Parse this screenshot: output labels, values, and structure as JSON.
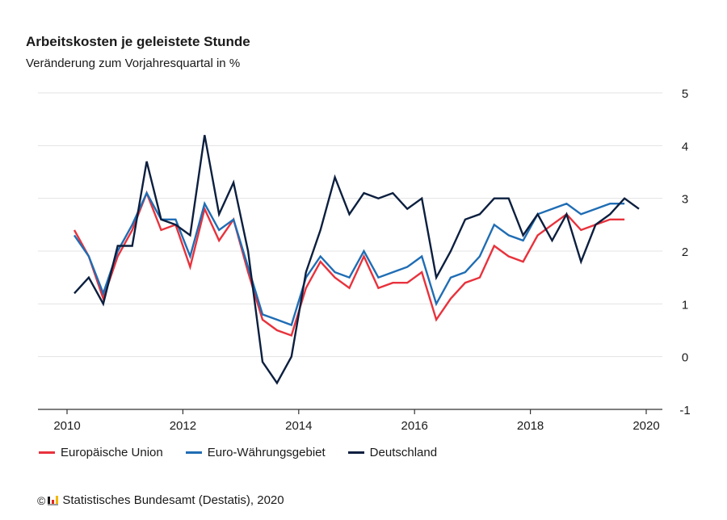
{
  "header": {
    "title": "Arbeitskosten je geleistete Stunde",
    "subtitle": "Veränderung zum Vorjahresquartal in %"
  },
  "footer": {
    "copyright_symbol": "©",
    "source": "Statistisches Bundesamt (Destatis), 2020"
  },
  "chart_data": {
    "type": "line",
    "title": "Arbeitskosten je geleistete Stunde",
    "subtitle": "Veränderung zum Vorjahresquartal in %",
    "xlabel": "",
    "ylabel": "Veränderung zum Vorjahresquartal in %",
    "x_start": "2010 Q1",
    "x_frequency": "quarterly",
    "xlim": [
      2009.5,
      2020.3
    ],
    "ylim": [
      -1,
      5
    ],
    "x_ticks": [
      "2010",
      "2012",
      "2014",
      "2016",
      "2018",
      "2020"
    ],
    "y_ticks": [
      "5",
      "4",
      "3",
      "2",
      "1",
      "0",
      "-1"
    ],
    "y_axis_position": "right",
    "grid": true,
    "legend_position": "bottom-left",
    "series": [
      {
        "name": "Europäische Union",
        "color": "#e8323c",
        "values": [
          2.4,
          1.9,
          1.1,
          1.9,
          2.4,
          3.1,
          2.4,
          2.5,
          1.7,
          2.8,
          2.2,
          2.6,
          1.6,
          0.7,
          0.5,
          0.4,
          1.3,
          1.8,
          1.5,
          1.3,
          1.9,
          1.3,
          1.4,
          1.4,
          1.6,
          0.7,
          1.1,
          1.4,
          1.5,
          2.1,
          1.9,
          1.8,
          2.3,
          2.5,
          2.7,
          2.4,
          2.5,
          2.6,
          2.6
        ]
      },
      {
        "name": "Euro-Währungsgebiet",
        "color": "#1f6db4",
        "values": [
          2.3,
          1.9,
          1.2,
          2.0,
          2.5,
          3.1,
          2.6,
          2.6,
          1.9,
          2.9,
          2.4,
          2.6,
          1.7,
          0.8,
          0.7,
          0.6,
          1.5,
          1.9,
          1.6,
          1.5,
          2.0,
          1.5,
          1.6,
          1.7,
          1.9,
          1.0,
          1.5,
          1.6,
          1.9,
          2.5,
          2.3,
          2.2,
          2.7,
          2.8,
          2.9,
          2.7,
          2.8,
          2.9,
          2.9
        ]
      },
      {
        "name": "Deutschland",
        "color": "#0c1f3f",
        "values": [
          1.2,
          1.5,
          1.0,
          2.1,
          2.1,
          3.7,
          2.6,
          2.5,
          2.3,
          4.2,
          2.7,
          3.3,
          2.0,
          -0.1,
          -0.5,
          0.0,
          1.6,
          2.4,
          3.4,
          2.7,
          3.1,
          3.0,
          3.1,
          2.8,
          3.0,
          1.5,
          2.0,
          2.6,
          2.7,
          3.0,
          3.0,
          2.3,
          2.7,
          2.2,
          2.7,
          1.8,
          2.5,
          2.7,
          3.0,
          2.8
        ]
      }
    ]
  }
}
